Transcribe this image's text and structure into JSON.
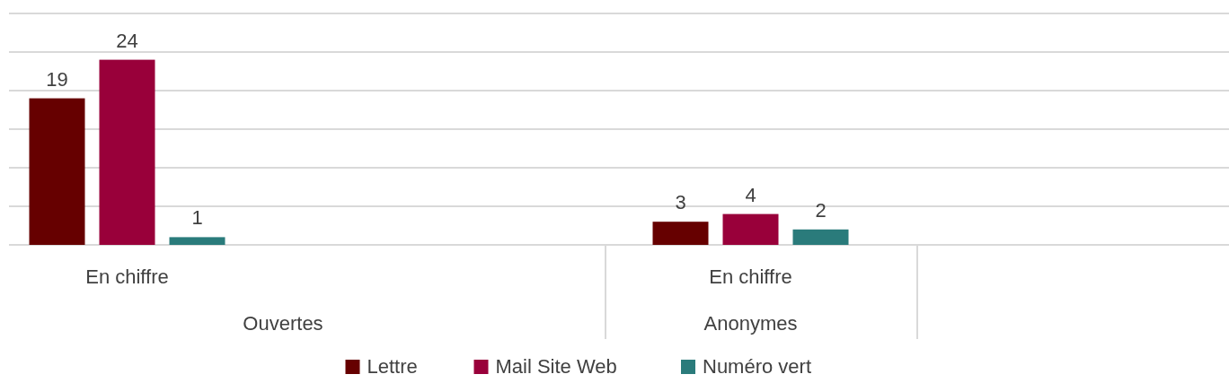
{
  "chart_data": {
    "type": "bar",
    "categories": [
      "En chiffre",
      null,
      "En chiffre",
      null
    ],
    "series": [
      {
        "name": "Lettre",
        "color": "#660000",
        "values": [
          19,
          null,
          3,
          null
        ]
      },
      {
        "name": "Mail Site Web",
        "color": "#99003a",
        "values": [
          24,
          null,
          4,
          null
        ]
      },
      {
        "name": "Numéro vert",
        "color": "#2a7b7b",
        "values": [
          1,
          null,
          2,
          null
        ]
      }
    ],
    "ylim": [
      0,
      30
    ],
    "yticks": [
      {
        "value": 0,
        "label": null
      },
      {
        "value": 5,
        "label": null
      },
      {
        "value": 10,
        "label": null
      },
      {
        "value": 15,
        "label": null
      },
      {
        "value": 20,
        "label": null
      },
      {
        "value": 25,
        "label": null
      },
      {
        "value": 30,
        "label": null
      }
    ],
    "tick_labels": "x",
    "grid": "y",
    "data_labels": true,
    "legend": "bottom",
    "annotations": [
      "Ouvertes",
      "Anonymes"
    ]
  }
}
